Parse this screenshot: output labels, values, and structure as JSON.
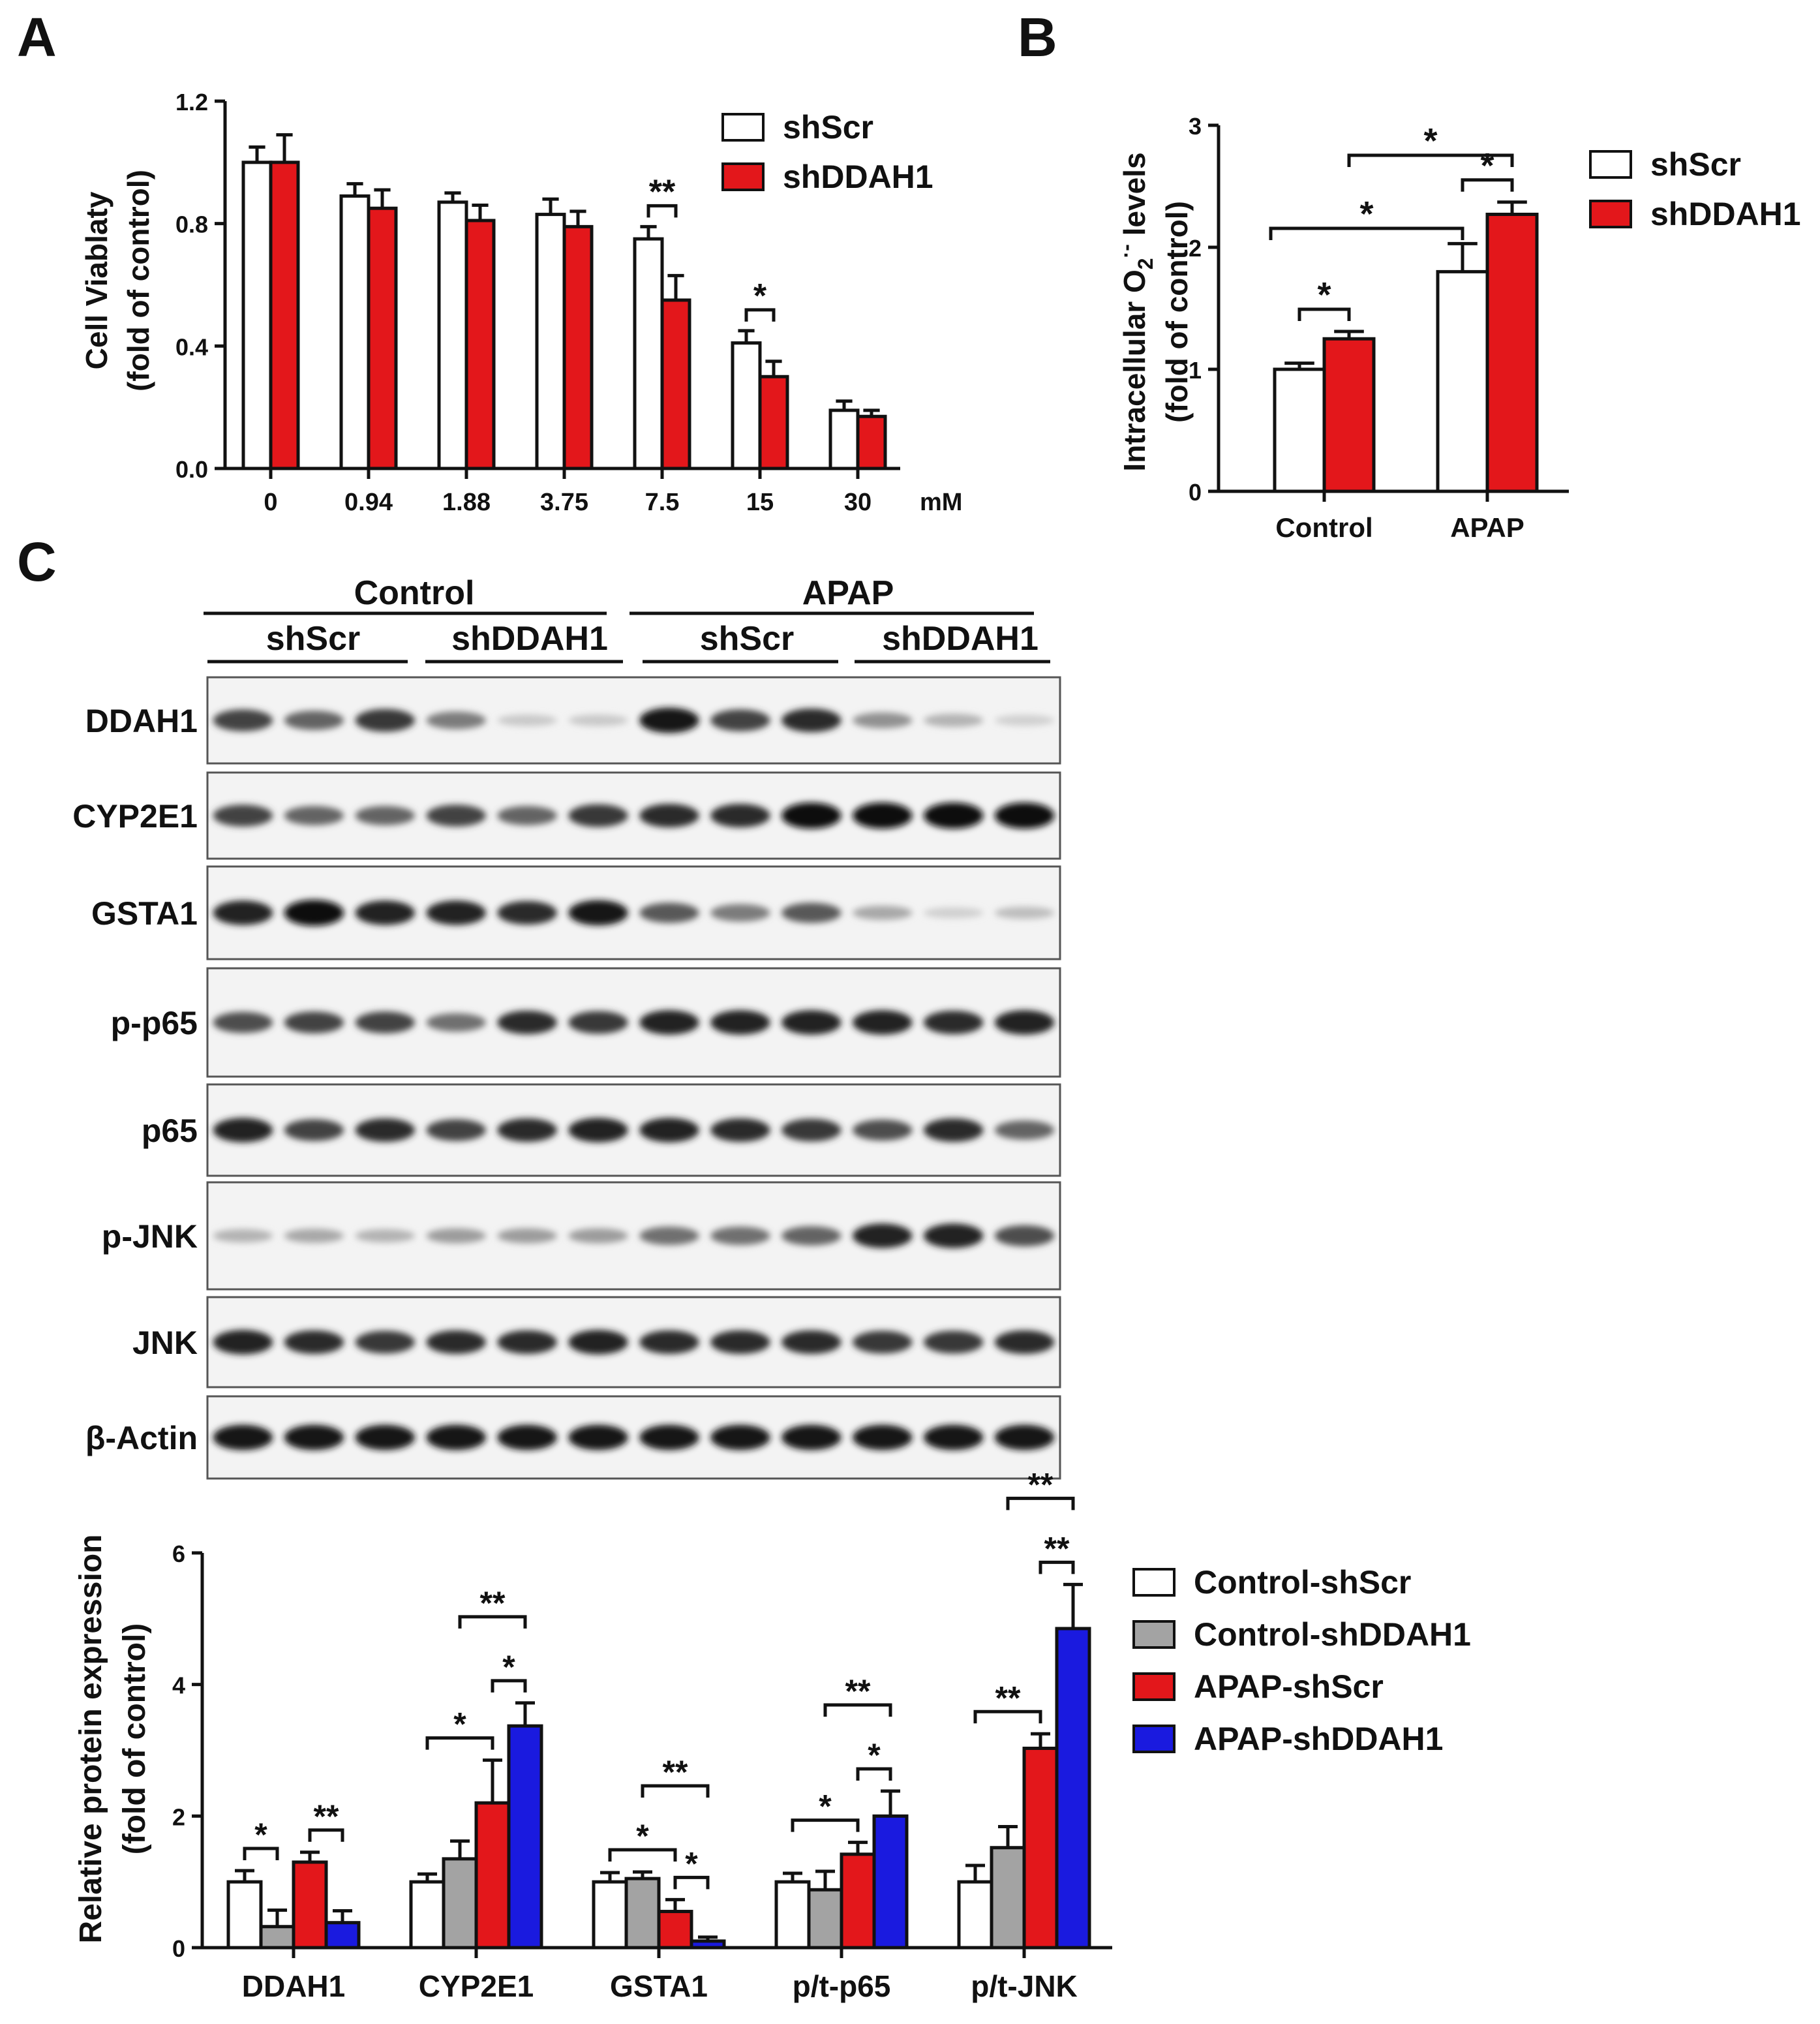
{
  "panels": {
    "a": "A",
    "b": "B",
    "c": "C"
  },
  "colors": {
    "white": "#ffffff",
    "gray": "#a3a3a3",
    "red": "#e3171b",
    "blue": "#1a1adf",
    "black": "#111111"
  },
  "chart_data": [
    {
      "id": "A",
      "type": "bar",
      "ylabel_lines": [
        "Cell Viablaty",
        "(fold of control)"
      ],
      "unit": "mM",
      "categories": [
        "0",
        "0.94",
        "1.88",
        "3.75",
        "7.5",
        "15",
        "30"
      ],
      "ylim": [
        0,
        1.2
      ],
      "yticks": [
        "0.0",
        "0.4",
        "0.8",
        "1.2"
      ],
      "series": [
        {
          "name": "shScr",
          "color": "#ffffff",
          "values": [
            1.0,
            0.89,
            0.87,
            0.83,
            0.75,
            0.41,
            0.19
          ],
          "errors": [
            0.05,
            0.04,
            0.03,
            0.05,
            0.04,
            0.04,
            0.03
          ]
        },
        {
          "name": "shDDAH1",
          "color": "#e3171b",
          "values": [
            1.0,
            0.85,
            0.81,
            0.79,
            0.55,
            0.3,
            0.17
          ],
          "errors": [
            0.09,
            0.06,
            0.05,
            0.05,
            0.08,
            0.05,
            0.02
          ]
        }
      ],
      "significance": [
        {
          "category": 4,
          "label": "**"
        },
        {
          "category": 5,
          "label": "*"
        }
      ]
    },
    {
      "id": "B",
      "type": "bar",
      "ylabel_base": "Intracellular O",
      "ylabel_sub": "2",
      "ylabel_sup": "·-",
      "ylabel_tail": " levels",
      "ylabel_line2": "(fold of control)",
      "categories": [
        "Control",
        "APAP"
      ],
      "ylim": [
        0,
        3
      ],
      "yticks": [
        "0",
        "1",
        "2",
        "3"
      ],
      "series": [
        {
          "name": "shScr",
          "color": "#ffffff",
          "values": [
            1.0,
            1.8
          ],
          "errors": [
            0.05,
            0.23
          ]
        },
        {
          "name": "shDDAH1",
          "color": "#e3171b",
          "values": [
            1.25,
            2.27
          ],
          "errors": [
            0.06,
            0.1
          ]
        }
      ],
      "significance": [
        {
          "label": "*",
          "kind": "within",
          "category": 0
        },
        {
          "label": "*",
          "kind": "within",
          "category": 1
        },
        {
          "label": "*",
          "kind": "between",
          "series": 0
        },
        {
          "label": "*",
          "kind": "between",
          "series": 1
        }
      ]
    },
    {
      "id": "C-quant",
      "type": "bar",
      "ylabel_lines": [
        "Relative protein expression",
        "(fold of control)"
      ],
      "categories": [
        "DDAH1",
        "CYP2E1",
        "GSTA1",
        "p/t-p65",
        "p/t-JNK"
      ],
      "ylim": [
        0,
        6
      ],
      "yticks": [
        "0",
        "2",
        "4",
        "6"
      ],
      "series": [
        {
          "name": "Control-shScr",
          "color": "#ffffff",
          "values": [
            1.0,
            1.0,
            1.0,
            1.0,
            1.0
          ],
          "errors": [
            0.17,
            0.12,
            0.14,
            0.13,
            0.25
          ]
        },
        {
          "name": "Control-shDDAH1",
          "color": "#a3a3a3",
          "values": [
            0.32,
            1.35,
            1.05,
            0.88,
            1.52
          ],
          "errors": [
            0.25,
            0.27,
            0.1,
            0.28,
            0.32
          ]
        },
        {
          "name": "APAP-shScr",
          "color": "#e3171b",
          "values": [
            1.3,
            2.2,
            0.55,
            1.42,
            3.03
          ],
          "errors": [
            0.15,
            0.65,
            0.18,
            0.18,
            0.22
          ]
        },
        {
          "name": "APAP-shDDAH1",
          "color": "#1a1adf",
          "values": [
            0.38,
            3.37,
            0.1,
            2.0,
            4.85
          ],
          "errors": [
            0.18,
            0.35,
            0.06,
            0.38,
            0.67
          ]
        }
      ],
      "significance": [
        {
          "category": 0,
          "from": 0,
          "to": 1,
          "label": "*",
          "level": 0
        },
        {
          "category": 0,
          "from": 2,
          "to": 3,
          "label": "**",
          "level": 0
        },
        {
          "category": 1,
          "from": 0,
          "to": 2,
          "label": "*",
          "level": 0
        },
        {
          "category": 1,
          "from": 2,
          "to": 3,
          "label": "*",
          "level": 0
        },
        {
          "category": 1,
          "from": 1,
          "to": 3,
          "label": "**",
          "level": 1
        },
        {
          "category": 2,
          "from": 0,
          "to": 2,
          "label": "*",
          "level": 0
        },
        {
          "category": 2,
          "from": 2,
          "to": 3,
          "label": "*",
          "level": 0
        },
        {
          "category": 2,
          "from": 1,
          "to": 3,
          "label": "**",
          "level": 1
        },
        {
          "category": 3,
          "from": 0,
          "to": 2,
          "label": "*",
          "level": 0
        },
        {
          "category": 3,
          "from": 2,
          "to": 3,
          "label": "*",
          "level": 0
        },
        {
          "category": 3,
          "from": 1,
          "to": 3,
          "label": "**",
          "level": 1
        },
        {
          "category": 4,
          "from": 0,
          "to": 2,
          "label": "**",
          "level": 0
        },
        {
          "category": 4,
          "from": 2,
          "to": 3,
          "label": "**",
          "level": 0
        },
        {
          "category": 4,
          "from": 1,
          "to": 3,
          "label": "**",
          "level": 1
        }
      ]
    }
  ],
  "blot": {
    "conditions": [
      "Control",
      "APAP"
    ],
    "groups": [
      "shScr",
      "shDDAH1",
      "shScr",
      "shDDAH1"
    ],
    "proteins": [
      {
        "name": "DDAH1",
        "intensities": [
          0.75,
          0.6,
          0.8,
          0.5,
          0.15,
          0.15,
          0.95,
          0.75,
          0.85,
          0.4,
          0.25,
          0.12
        ]
      },
      {
        "name": "CYP2E1",
        "intensities": [
          0.75,
          0.6,
          0.6,
          0.75,
          0.6,
          0.8,
          0.85,
          0.85,
          1.0,
          1.0,
          1.0,
          1.0
        ]
      },
      {
        "name": "GSTA1",
        "intensities": [
          0.9,
          1.0,
          0.9,
          0.9,
          0.85,
          0.95,
          0.65,
          0.5,
          0.65,
          0.3,
          0.12,
          0.2
        ]
      },
      {
        "name": "p-p65",
        "intensities": [
          0.7,
          0.75,
          0.75,
          0.55,
          0.85,
          0.8,
          0.9,
          0.9,
          0.9,
          0.9,
          0.85,
          0.9
        ]
      },
      {
        "name": "p65",
        "intensities": [
          0.9,
          0.75,
          0.85,
          0.75,
          0.85,
          0.9,
          0.9,
          0.85,
          0.8,
          0.7,
          0.85,
          0.6
        ]
      },
      {
        "name": "p-JNK",
        "intensities": [
          0.25,
          0.3,
          0.25,
          0.35,
          0.35,
          0.35,
          0.55,
          0.55,
          0.6,
          0.9,
          0.9,
          0.7
        ]
      },
      {
        "name": "JNK",
        "intensities": [
          0.9,
          0.85,
          0.8,
          0.85,
          0.85,
          0.9,
          0.85,
          0.85,
          0.85,
          0.8,
          0.8,
          0.85
        ]
      },
      {
        "name": "β-Actin",
        "intensities": [
          0.95,
          0.95,
          0.95,
          0.95,
          0.95,
          0.95,
          0.95,
          0.95,
          0.95,
          0.95,
          0.95,
          0.95
        ]
      }
    ]
  }
}
